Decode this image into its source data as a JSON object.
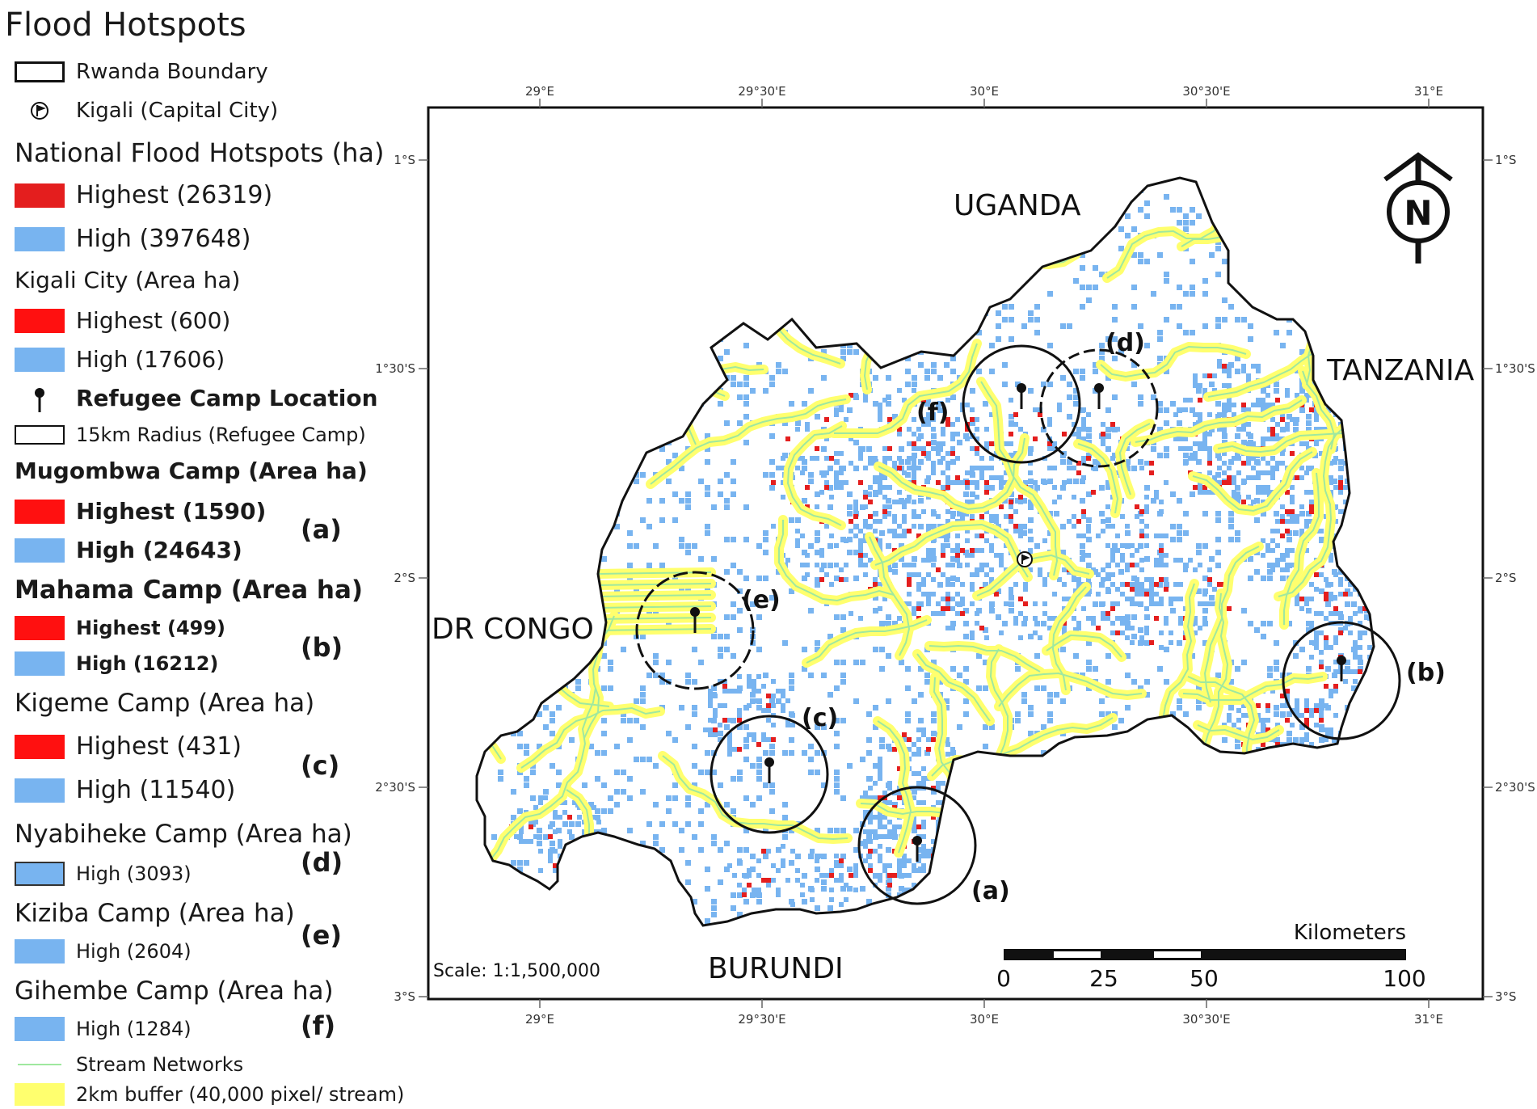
{
  "title": "Flood Hotspots",
  "legend": {
    "boundary": "Rwanda Boundary",
    "capital": "Kigali (Capital City)",
    "national_header": "National Flood Hotspots (ha)",
    "national_highest": "Highest (26319)",
    "national_high": "High (397648)",
    "kigali_header": "Kigali City (Area ha)",
    "kigali_highest": "Highest (600)",
    "kigali_high": "High (17606)",
    "camp_location": "Refugee Camp Location",
    "radius": "15km Radius (Refugee Camp)",
    "mugombwa_header": "Mugombwa Camp (Area ha)",
    "mugombwa_highest": "Highest (1590)",
    "mugombwa_high": "High (24643)",
    "mugombwa_letter": "(a)",
    "mahama_header": "Mahama Camp (Area ha)",
    "mahama_highest": "Highest (499)",
    "mahama_high": "High (16212)",
    "mahama_letter": "(b)",
    "kigeme_header": "Kigeme Camp (Area ha)",
    "kigeme_highest": "Highest (431)",
    "kigeme_high": "High (11540)",
    "kigeme_letter": "(c)",
    "nyabiheke_header": "Nyabiheke Camp (Area ha)",
    "nyabiheke_high": "High (3093)",
    "nyabiheke_letter": "(d)",
    "kiziba_header": "Kiziba Camp (Area ha)",
    "kiziba_high": "High (2604)",
    "kiziba_letter": "(e)",
    "gihembe_header": "Gihembe Camp (Area ha)",
    "gihembe_high": "High (1284)",
    "gihembe_letter": "(f)",
    "streams": "Stream Networks",
    "buffer": "2km buffer (40,000 pixel/ stream)"
  },
  "map": {
    "lon_ticks": [
      "29°E",
      "29°30'E",
      "30°E",
      "30°30'E",
      "31°E"
    ],
    "lat_ticks": [
      "1°S",
      "1°30'S",
      "2°S",
      "2°30'S",
      "3°S"
    ],
    "countries": {
      "uganda": "UGANDA",
      "tanzania": "TANZANIA",
      "drc": "DR CONGO",
      "burundi": "BURUNDI"
    },
    "camp_letters": {
      "a": "(a)",
      "b": "(b)",
      "c": "(c)",
      "d": "(d)",
      "e": "(e)",
      "f": "(f)"
    },
    "north": "N",
    "scale_text": "Scale: 1:1,500,000",
    "scalebar_unit": "Kilometers",
    "scalebar_labels": [
      "0",
      "25",
      "50",
      "100"
    ],
    "colors": {
      "highest": "#e41e1e",
      "high": "#78b4f0",
      "stream": "#9fe89f",
      "buffer": "#ffff6e",
      "boundary": "#111111"
    }
  }
}
